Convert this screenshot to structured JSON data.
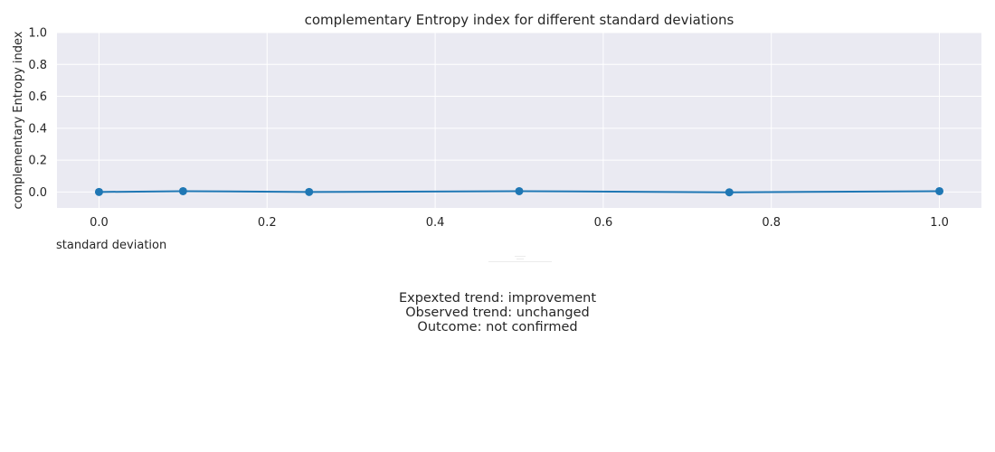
{
  "chart_data": {
    "type": "line",
    "title": "complementary Entropy index for different standard deviations",
    "xlabel": "standard deviation",
    "ylabel": "complementary Entropy index",
    "xlim": [
      -0.05,
      1.05
    ],
    "ylim": [
      -0.1,
      1.0
    ],
    "xticks": [
      "0.0",
      "0.2",
      "0.4",
      "0.6",
      "0.8",
      "1.0"
    ],
    "yticks": [
      "0.0",
      "0.2",
      "0.4",
      "0.6",
      "0.8",
      "1.0"
    ],
    "grid": true,
    "series": [
      {
        "x": [
          0.0,
          0.1,
          0.25,
          0.5,
          0.75,
          1.0
        ],
        "y": [
          0.0,
          0.005,
          0.0,
          0.005,
          -0.002,
          0.005
        ]
      }
    ],
    "colors": {
      "line": "#1f77b4",
      "plot_background": "#eaeaf2",
      "grid": "#ffffff"
    }
  },
  "summary": {
    "expected": "Expexted trend: improvement",
    "observed": "Observed trend: unchanged",
    "outcome": "Outcome: not confirmed"
  }
}
